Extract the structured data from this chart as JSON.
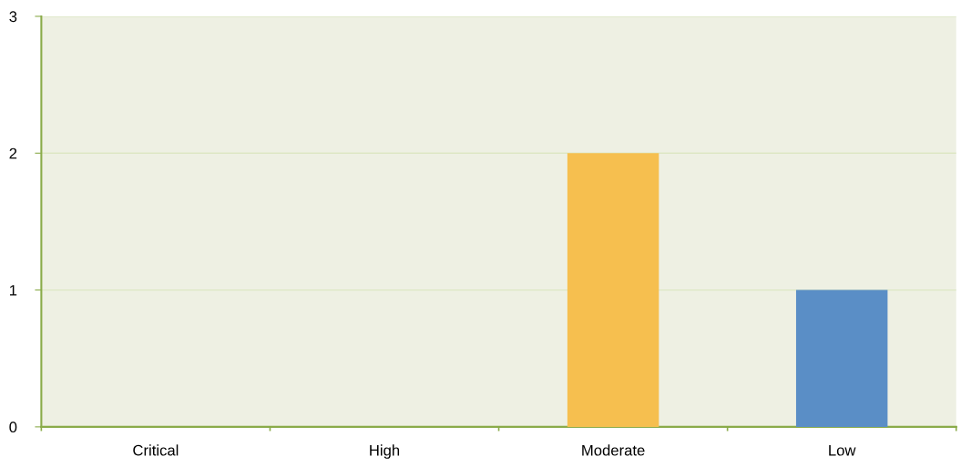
{
  "chart_data": {
    "type": "bar",
    "categories": [
      "Critical",
      "High",
      "Moderate",
      "Low"
    ],
    "values": [
      0,
      0,
      2,
      1
    ],
    "colors": [
      null,
      null,
      "#f6bf4f",
      "#5a8ec6"
    ],
    "ylim": [
      0,
      3
    ],
    "yticks": [
      0,
      1,
      2,
      3
    ],
    "grid": "y",
    "legend": false
  }
}
